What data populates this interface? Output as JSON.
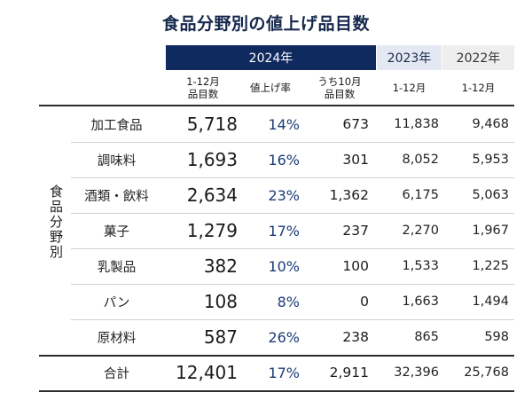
{
  "title": "食品分野別の値上げ品目数",
  "year_headers": {
    "y2024": "2024年",
    "y2023": "2023年",
    "y2022": "2022年"
  },
  "column_headers": {
    "items_2024": [
      "1-12月",
      "品目数"
    ],
    "rate_2024": "値上げ率",
    "oct_2024": [
      "うち10月",
      "品目数"
    ],
    "y2023": "1-12月",
    "y2022": "1-12月"
  },
  "row_group_label": "食品分野別",
  "colors": {
    "navy": "#0f2a5e",
    "light_blue": "#e3e8f3",
    "light_gray": "#eeeeee",
    "rate_text": "#1d3c78"
  },
  "chart_data": {
    "type": "table",
    "title": "食品分野別の値上げ品目数",
    "columns": [
      "2024年 1-12月 品目数",
      "2024年 値上げ率",
      "2024年 うち10月 品目数",
      "2023年 1-12月",
      "2022年 1-12月"
    ],
    "rows": [
      {
        "category": "加工食品",
        "items_2024": "5,718",
        "rate_2024": "14%",
        "oct_2024": "673",
        "y2023": "11,838",
        "y2022": "9,468"
      },
      {
        "category": "調味料",
        "items_2024": "1,693",
        "rate_2024": "16%",
        "oct_2024": "301",
        "y2023": "8,052",
        "y2022": "5,953"
      },
      {
        "category": "酒類・飲料",
        "items_2024": "2,634",
        "rate_2024": "23%",
        "oct_2024": "1,362",
        "y2023": "6,175",
        "y2022": "5,063"
      },
      {
        "category": "菓子",
        "items_2024": "1,279",
        "rate_2024": "17%",
        "oct_2024": "237",
        "y2023": "2,270",
        "y2022": "1,967"
      },
      {
        "category": "乳製品",
        "items_2024": "382",
        "rate_2024": "10%",
        "oct_2024": "100",
        "y2023": "1,533",
        "y2022": "1,225"
      },
      {
        "category": "パン",
        "items_2024": "108",
        "rate_2024": "8%",
        "oct_2024": "0",
        "y2023": "1,663",
        "y2022": "1,494"
      },
      {
        "category": "原材料",
        "items_2024": "587",
        "rate_2024": "26%",
        "oct_2024": "238",
        "y2023": "865",
        "y2022": "598"
      }
    ],
    "total": {
      "category": "合計",
      "items_2024": "12,401",
      "rate_2024": "17%",
      "oct_2024": "2,911",
      "y2023": "32,396",
      "y2022": "25,768"
    }
  }
}
